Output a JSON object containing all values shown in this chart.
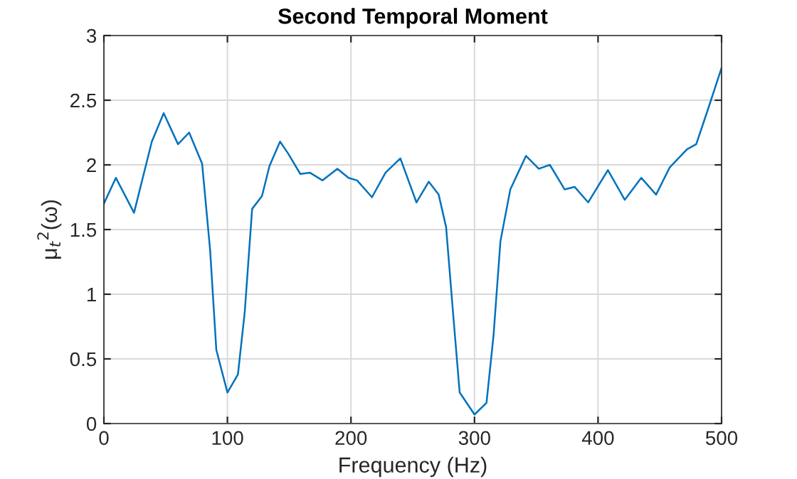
{
  "chart_data": {
    "type": "line",
    "title": "Second Temporal Moment",
    "xlabel": "Frequency (Hz)",
    "ylabel": "μ$_{t}$$^{2}$(ω)",
    "x": [
      0,
      9.7,
      24.4,
      38.8,
      48.4,
      60,
      69,
      79.5,
      86,
      91,
      100,
      108.5,
      114,
      120,
      128,
      134,
      142.6,
      149,
      159,
      166.7,
      177,
      189,
      198,
      205,
      217,
      228,
      240,
      253,
      263,
      271,
      277,
      282.6,
      288,
      300,
      309.7,
      315.4,
      321,
      329,
      341.7,
      352,
      361,
      373,
      381,
      392,
      408,
      421.6,
      435,
      447,
      458,
      472,
      479.5,
      489,
      500
    ],
    "series": [
      {
        "color": "#0072bd",
        "values": [
          1.7,
          1.9,
          1.63,
          2.18,
          2.4,
          2.16,
          2.25,
          2.01,
          1.34,
          0.57,
          0.24,
          0.38,
          0.86,
          1.66,
          1.76,
          1.99,
          2.18,
          2.09,
          1.93,
          1.94,
          1.88,
          1.97,
          1.9,
          1.88,
          1.75,
          1.94,
          2.05,
          1.71,
          1.87,
          1.77,
          1.52,
          0.86,
          0.24,
          0.07,
          0.16,
          0.68,
          1.41,
          1.81,
          2.07,
          1.97,
          2.0,
          1.81,
          1.83,
          1.71,
          1.96,
          1.73,
          1.9,
          1.77,
          1.98,
          2.12,
          2.16,
          2.43,
          2.75
        ]
      }
    ],
    "xlim": [
      0,
      500
    ],
    "ylim": [
      0,
      3
    ],
    "xticks": [
      0,
      100,
      200,
      300,
      400,
      500
    ],
    "yticks": [
      0,
      0.5,
      1,
      1.5,
      2,
      2.5,
      3
    ],
    "grid": true,
    "line_style": "solid",
    "marker": "none"
  }
}
